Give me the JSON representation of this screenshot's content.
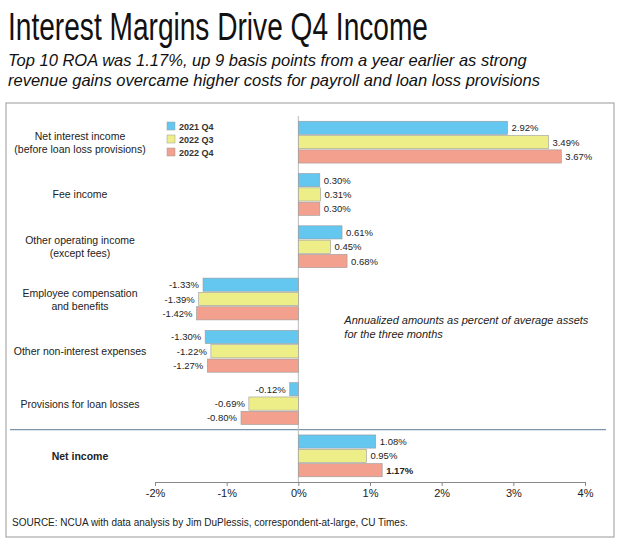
{
  "chart_data": {
    "type": "bar",
    "orientation": "horizontal",
    "title": "Interest Margins Drive Q4 Income",
    "subtitle": "Top 10 ROA was 1.17%, up 9 basis points from a year earlier as strong\nrevenue gains overcame higher costs for payroll and loan loss provisions",
    "annotation": "Annualized amounts as percent of average assets\nfor the three months",
    "source": "SOURCE: NCUA with data analysis by Jim DuPlessis, correspondent-at-large, CU Times.",
    "categories": [
      "Net interest income\n(before loan loss provisions)",
      "Fee income",
      "Other operating income\n(except fees)",
      "Employee compensation\nand benefits",
      "Other non-interest expenses",
      "Provisions for loan losses",
      "Net income"
    ],
    "series": [
      {
        "name": "2021 Q4",
        "color": "#63c7f0",
        "values": [
          2.92,
          0.3,
          0.61,
          -1.33,
          -1.3,
          -0.12,
          1.08
        ],
        "value_labels": [
          "2.92%",
          "0.30%",
          "0.61%",
          "-1.33%",
          "-1.30%",
          "-0.12%",
          "1.08%"
        ]
      },
      {
        "name": "2022 Q3",
        "color": "#eeee88",
        "values": [
          3.49,
          0.31,
          0.45,
          -1.39,
          -1.22,
          -0.69,
          0.95
        ],
        "value_labels": [
          "3.49%",
          "0.31%",
          "0.45%",
          "-1.39%",
          "-1.22%",
          "-0.69%",
          "0.95%"
        ]
      },
      {
        "name": "2022 Q4",
        "color": "#f3a08e",
        "values": [
          3.67,
          0.3,
          0.68,
          -1.42,
          -1.27,
          -0.8,
          1.17
        ],
        "value_labels": [
          "3.67%",
          "0.30%",
          "0.68%",
          "-1.42%",
          "-1.27%",
          "-0.80%",
          "1.17%"
        ]
      }
    ],
    "xlim": [
      -2,
      4
    ],
    "xticks": [
      {
        "value": -2,
        "label": "-2%"
      },
      {
        "value": -1,
        "label": "-1%"
      },
      {
        "value": 0,
        "label": "0%"
      },
      {
        "value": 1,
        "label": "1%"
      },
      {
        "value": 2,
        "label": "2%"
      },
      {
        "value": 3,
        "label": "3%"
      },
      {
        "value": 4,
        "label": "4%"
      }
    ],
    "grid": false,
    "legend": "upper left",
    "data_labels": true
  }
}
